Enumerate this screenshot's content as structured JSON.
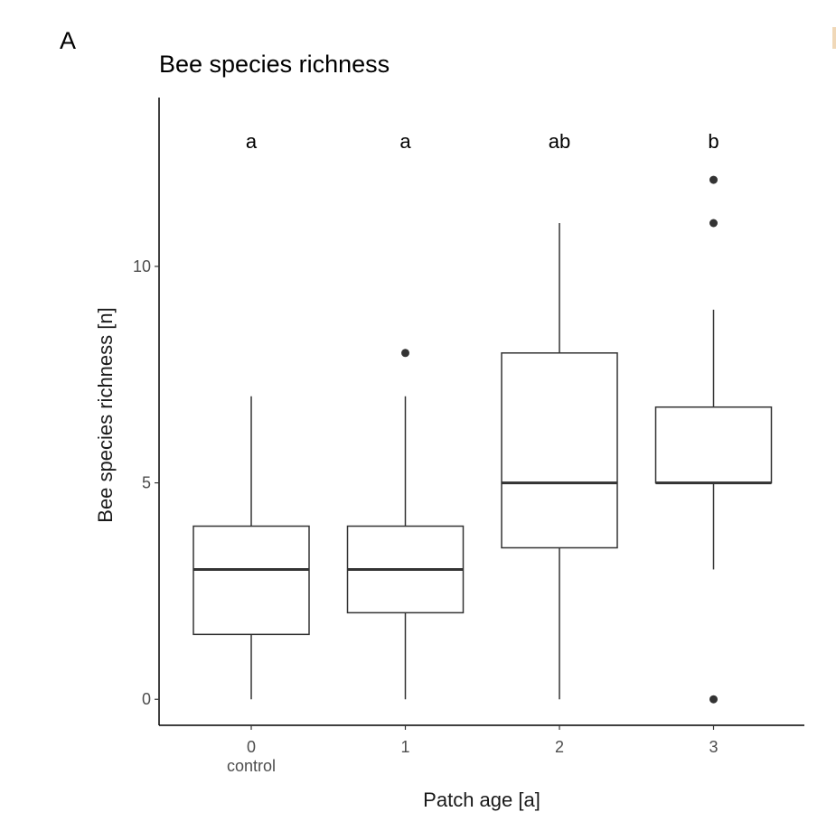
{
  "panel_label": "A",
  "chart_data": {
    "type": "box",
    "title": "Bee species richness",
    "xlabel": "Patch age [a]",
    "ylabel": "Bee species richness [n]",
    "ylim": [
      -0.6,
      13.9
    ],
    "y_ticks": [
      0,
      5,
      10
    ],
    "grid": false,
    "categories": [
      "0",
      "1",
      "2",
      "3"
    ],
    "category_sublabels": [
      "control",
      "",
      "",
      ""
    ],
    "boxes": [
      {
        "category": "0",
        "whisker_low": 0,
        "q1": 1.5,
        "median": 3,
        "q3": 4,
        "whisker_high": 7,
        "outliers": []
      },
      {
        "category": "1",
        "whisker_low": 0,
        "q1": 2,
        "median": 3,
        "q3": 4,
        "whisker_high": 7,
        "outliers": [
          8
        ]
      },
      {
        "category": "2",
        "whisker_low": 0,
        "q1": 3.5,
        "median": 5,
        "q3": 8,
        "whisker_high": 11,
        "outliers": []
      },
      {
        "category": "3",
        "whisker_low": 3,
        "q1": 5,
        "median": 5,
        "q3": 6.75,
        "whisker_high": 9,
        "outliers": [
          0,
          11,
          12
        ]
      }
    ],
    "significance_letters": [
      "a",
      "a",
      "ab",
      "b"
    ],
    "significance_y": 12.9,
    "colors": {
      "box_stroke": "#333333",
      "box_fill": "#ffffff",
      "axis": "#000000"
    }
  }
}
